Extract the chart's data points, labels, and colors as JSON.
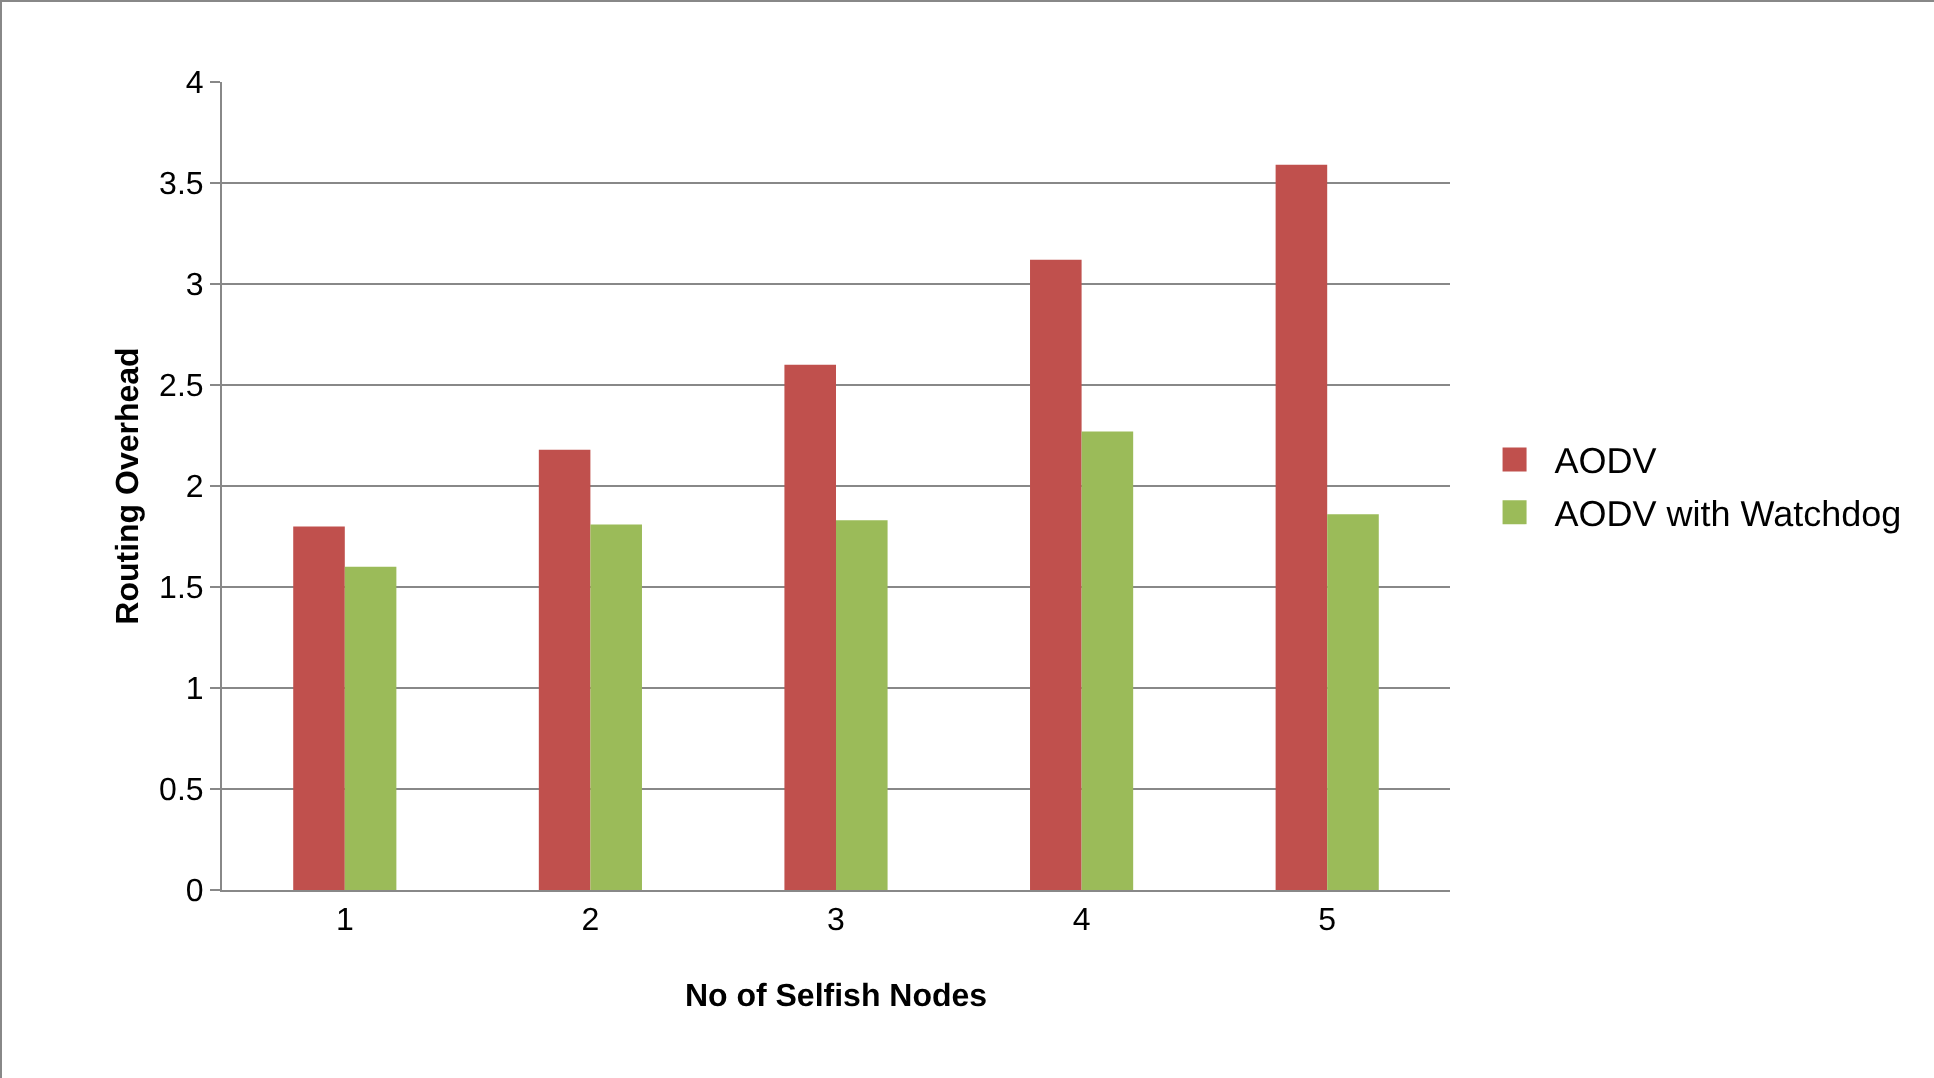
{
  "chart_data": {
    "type": "bar",
    "xlabel": "No of Selfish Nodes",
    "ylabel": "Routing Overhead",
    "categories": [
      "1",
      "2",
      "3",
      "4",
      "5"
    ],
    "series": [
      {
        "name": "AODV",
        "color": "#c0504d",
        "values": [
          1.8,
          2.18,
          2.6,
          3.12,
          3.59
        ]
      },
      {
        "name": "AODV with Watchdog",
        "color": "#9bbb59",
        "values": [
          1.6,
          1.81,
          1.83,
          2.27,
          1.86
        ]
      }
    ],
    "ylim": [
      0,
      4
    ],
    "yticks": [
      0,
      0.5,
      1,
      1.5,
      2,
      2.5,
      3,
      3.5,
      4
    ],
    "grid": "y",
    "legend": "right"
  }
}
